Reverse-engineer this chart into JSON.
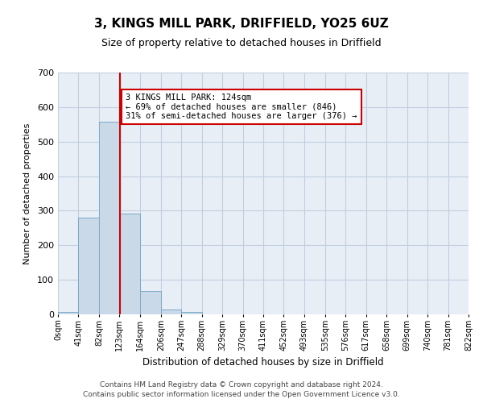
{
  "title": "3, KINGS MILL PARK, DRIFFIELD, YO25 6UZ",
  "subtitle": "Size of property relative to detached houses in Driffield",
  "xlabel": "Distribution of detached houses by size in Driffield",
  "ylabel": "Number of detached properties",
  "bar_edges": [
    0,
    41,
    82,
    123,
    164,
    206,
    247,
    288,
    329,
    370,
    411,
    452,
    493,
    535,
    576,
    617,
    658,
    699,
    740,
    781,
    822
  ],
  "bar_heights": [
    7,
    281,
    558,
    291,
    68,
    13,
    8,
    0,
    0,
    0,
    0,
    0,
    0,
    0,
    0,
    0,
    0,
    0,
    0,
    0
  ],
  "bar_color": "#c9d9e8",
  "bar_edge_color": "#7aaac8",
  "property_line_x": 124,
  "property_line_color": "#cc0000",
  "annotation_text": "3 KINGS MILL PARK: 124sqm\n← 69% of detached houses are smaller (846)\n31% of semi-detached houses are larger (376) →",
  "annotation_box_color": "#cc0000",
  "ylim": [
    0,
    700
  ],
  "yticks": [
    0,
    100,
    200,
    300,
    400,
    500,
    600,
    700
  ],
  "grid_color": "#c0cfe0",
  "bg_color": "#e8eef5",
  "footer_line1": "Contains HM Land Registry data © Crown copyright and database right 2024.",
  "footer_line2": "Contains public sector information licensed under the Open Government Licence v3.0.",
  "tick_labels": [
    "0sqm",
    "41sqm",
    "82sqm",
    "123sqm",
    "164sqm",
    "206sqm",
    "247sqm",
    "288sqm",
    "329sqm",
    "370sqm",
    "411sqm",
    "452sqm",
    "493sqm",
    "535sqm",
    "576sqm",
    "617sqm",
    "658sqm",
    "699sqm",
    "740sqm",
    "781sqm",
    "822sqm"
  ]
}
